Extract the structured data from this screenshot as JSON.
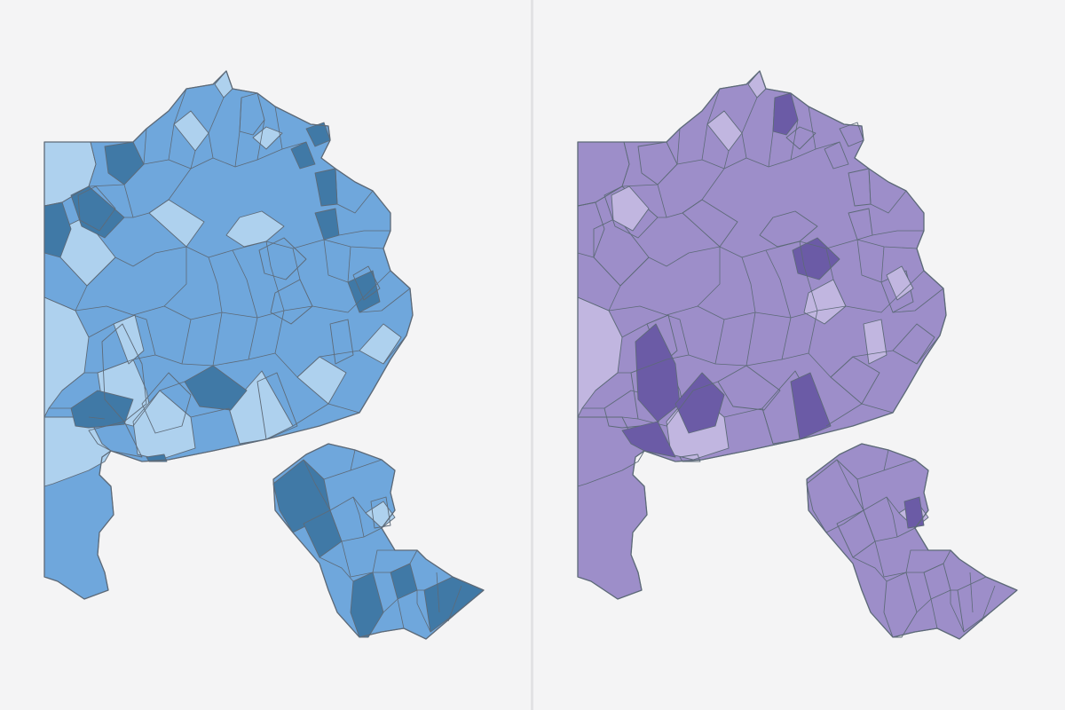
{
  "maps": [
    {
      "name": "blue-choropleth",
      "palette": {
        "light": "#aed1ee",
        "mid": "#6fa7dc",
        "dark": "#4079a6"
      },
      "base": "mid",
      "highlights": [
        {
          "id": "d1",
          "cls": "light"
        },
        {
          "id": "d2",
          "cls": "light"
        },
        {
          "id": "d3",
          "cls": "light"
        },
        {
          "id": "d4",
          "cls": "light"
        },
        {
          "id": "d5",
          "cls": "light"
        },
        {
          "id": "d6",
          "cls": "light"
        },
        {
          "id": "d7",
          "cls": "light"
        },
        {
          "id": "d8",
          "cls": "light"
        },
        {
          "id": "d9",
          "cls": "light"
        },
        {
          "id": "d10",
          "cls": "light"
        },
        {
          "id": "d11",
          "cls": "light"
        },
        {
          "id": "d12",
          "cls": "light"
        },
        {
          "id": "d13",
          "cls": "light"
        },
        {
          "id": "d14",
          "cls": "light"
        },
        {
          "id": "d15",
          "cls": "light"
        },
        {
          "id": "d16",
          "cls": "light"
        },
        {
          "id": "k1",
          "cls": "dark"
        },
        {
          "id": "k2",
          "cls": "dark"
        },
        {
          "id": "k3",
          "cls": "dark"
        },
        {
          "id": "k4",
          "cls": "dark"
        },
        {
          "id": "k5",
          "cls": "dark"
        },
        {
          "id": "k6",
          "cls": "dark"
        },
        {
          "id": "k7",
          "cls": "dark"
        },
        {
          "id": "k8",
          "cls": "dark"
        },
        {
          "id": "k9",
          "cls": "dark"
        },
        {
          "id": "k10",
          "cls": "dark"
        },
        {
          "id": "k11",
          "cls": "dark"
        },
        {
          "id": "k12",
          "cls": "dark"
        },
        {
          "id": "k13",
          "cls": "dark"
        },
        {
          "id": "k14",
          "cls": "dark"
        },
        {
          "id": "k15",
          "cls": "dark"
        },
        {
          "id": "k16",
          "cls": "dark"
        }
      ]
    },
    {
      "name": "purple-choropleth",
      "palette": {
        "light": "#c1b6e0",
        "mid": "#9d8ec9",
        "dark": "#6b5ba6"
      },
      "base": "mid",
      "highlights": [
        {
          "id": "d1",
          "cls": "mid"
        },
        {
          "id": "d2",
          "cls": "light"
        },
        {
          "id": "d4",
          "cls": "light"
        },
        {
          "id": "d5",
          "cls": "light"
        },
        {
          "id": "d11",
          "cls": "light"
        },
        {
          "id": "d16",
          "cls": "light"
        },
        {
          "id": "p1",
          "cls": "light"
        },
        {
          "id": "p2",
          "cls": "light"
        },
        {
          "id": "p3",
          "cls": "light"
        },
        {
          "id": "p4",
          "cls": "light"
        },
        {
          "id": "p5",
          "cls": "light"
        },
        {
          "id": "q1",
          "cls": "dark"
        },
        {
          "id": "q2",
          "cls": "dark"
        },
        {
          "id": "q3",
          "cls": "dark"
        },
        {
          "id": "q4",
          "cls": "dark"
        },
        {
          "id": "q5",
          "cls": "dark"
        },
        {
          "id": "q6",
          "cls": "dark"
        },
        {
          "id": "q7",
          "cls": "dark"
        }
      ]
    }
  ]
}
